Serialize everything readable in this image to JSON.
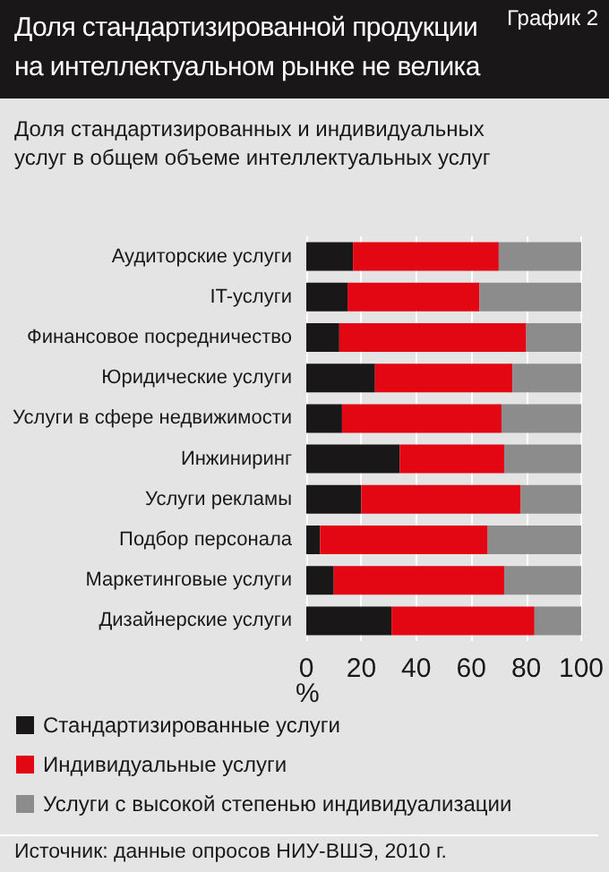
{
  "chart_data": {
    "type": "bar",
    "orientation": "horizontal",
    "stacked": true,
    "title": "Доля стандартизированной продукции на интеллектуальном рынке не велика",
    "subtitle": "Доля стандартизированных и индивидуальных услуг в общем объеме интеллектуальных услуг",
    "xlabel": "%",
    "annotations": [
      "График 2",
      "Источник: данные опросов НИУ-ВШЭ, 2010 г."
    ],
    "categories": [
      "Аудиторские услуги",
      "IT-услуги",
      "Финансовое посредничество",
      "Юридические услуги",
      "Услуги в сфере недвижимости",
      "Инжиниринг",
      "Услуги рекламы",
      "Подбор персонала",
      "Маркетинговые услуги",
      "Дизайнерские услуги"
    ],
    "series": [
      {
        "name": "Стандартизированные услуги",
        "color": "#1a1718",
        "values": [
          17,
          15,
          12,
          25,
          13,
          34,
          20,
          5,
          10,
          31
        ]
      },
      {
        "name": "Индивидуальные услуги",
        "color": "#e30613",
        "values": [
          53,
          48,
          68,
          50,
          58,
          38,
          58,
          61,
          62,
          52
        ]
      },
      {
        "name": "Услуги с высокой степенью индивидуализации",
        "color": "#8c8c8c",
        "values": [
          30,
          37,
          20,
          25,
          29,
          28,
          22,
          34,
          28,
          17
        ]
      }
    ],
    "xlim": [
      0,
      100
    ],
    "xticks": [
      0,
      20,
      40,
      60,
      80,
      100
    ],
    "grid": "x",
    "legend": "bottom"
  }
}
